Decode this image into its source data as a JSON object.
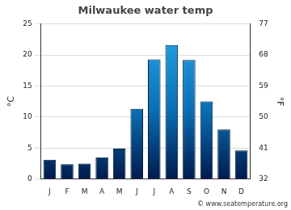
{
  "chart_data": {
    "type": "bar",
    "title": "Milwaukee water temp",
    "categories": [
      "J",
      "F",
      "M",
      "A",
      "M",
      "J",
      "J",
      "A",
      "S",
      "O",
      "N",
      "D"
    ],
    "values": [
      3.1,
      2.4,
      2.5,
      3.5,
      4.9,
      11.3,
      19.3,
      21.6,
      19.2,
      12.5,
      8.0,
      4.6
    ],
    "color": "#2aa8e8",
    "ylabel": "°C",
    "y2label": "°F",
    "ylim": [
      0,
      25
    ],
    "yticks": [
      0,
      5,
      10,
      15,
      20,
      25
    ],
    "y2lim": [
      32,
      77
    ],
    "y2ticks": [
      32,
      41,
      50,
      59,
      68,
      77
    ],
    "annotations": [
      "© www.seatemperature.org"
    ],
    "grid": true
  }
}
